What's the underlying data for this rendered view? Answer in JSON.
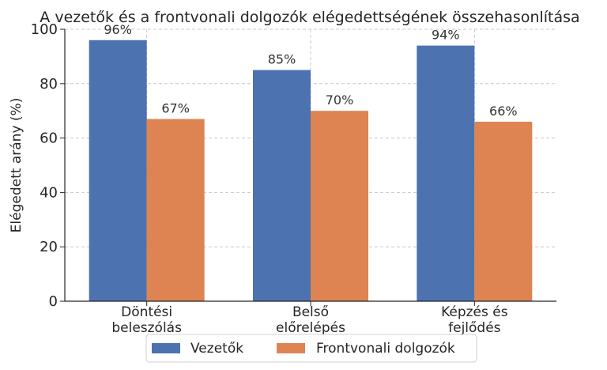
{
  "chart_data": {
    "type": "bar",
    "title": "A vezetők és a frontvonali dolgozók elégedettségének összehasonlítása",
    "xlabel": "",
    "ylabel": "Elégedett arány (%)",
    "ylim": [
      0,
      100
    ],
    "yticks": [
      0,
      20,
      40,
      60,
      80,
      100
    ],
    "grid": true,
    "legend_position": "bottom-center",
    "categories": [
      [
        "Döntési",
        "beleszólás"
      ],
      [
        "Belső",
        "előrelépés"
      ],
      [
        "Képzés és",
        "fejlődés"
      ]
    ],
    "series": [
      {
        "name": "Vezetők",
        "color": "#4C72B0",
        "values": [
          96,
          85,
          94
        ],
        "labels": [
          "96%",
          "85%",
          "94%"
        ]
      },
      {
        "name": "Frontvonali dolgozók",
        "color": "#DD8452",
        "values": [
          67,
          70,
          66
        ],
        "labels": [
          "67%",
          "70%",
          "66%"
        ]
      }
    ]
  }
}
